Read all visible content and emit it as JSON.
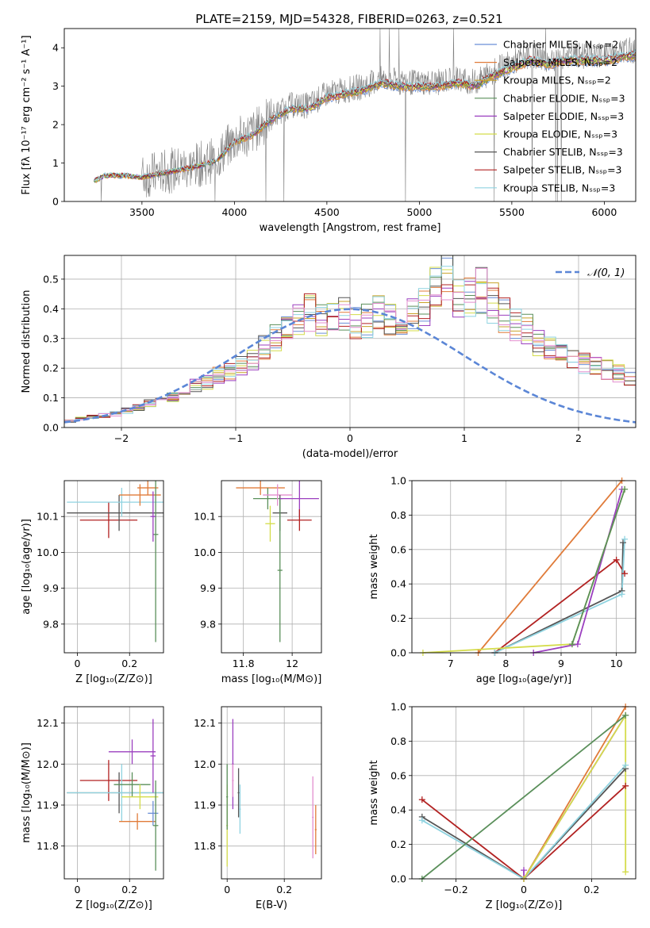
{
  "chart_data": [
    {
      "id": "spectrum",
      "type": "line",
      "title": "PLATE=2159, MJD=54328, FIBERID=0263, z=0.521",
      "xlabel": "wavelength [Angstrom, rest frame]",
      "ylabel": "Flux [fλ 10⁻¹⁷ erg cm⁻² s⁻¹ A⁻¹]",
      "xlim": [
        3080,
        6170
      ],
      "ylim": [
        0,
        4.5
      ],
      "xticks": [
        3500,
        4000,
        4500,
        5000,
        5500,
        6000
      ],
      "yticks": [
        0,
        1,
        2,
        3,
        4
      ],
      "legend_position": "upper-right",
      "data_color": "#808080",
      "data_range": [
        3240,
        6170
      ],
      "series": [
        {
          "name": "Chabrier MILES, Nₛₛₚ=2",
          "color": "#6b8fd6"
        },
        {
          "name": "Salpeter MILES, Nₛₛₚ=2",
          "color": "#e07b39"
        },
        {
          "name": "Kroupa MILES, Nₛₛₚ=2",
          "color": "#c9a227"
        },
        {
          "name": "Chabrier ELODIE, Nₛₛₚ=3",
          "color": "#5a8f5a"
        },
        {
          "name": "Salpeter ELODIE, Nₛₛₚ=3",
          "color": "#9b3fbf"
        },
        {
          "name": "Kroupa ELODIE, Nₛₛₚ=3",
          "color": "#d4dc4a"
        },
        {
          "name": "Chabrier STELIB, Nₛₛₚ=3",
          "color": "#555555"
        },
        {
          "name": "Salpeter STELIB, Nₛₛₚ=3",
          "color": "#b22222"
        },
        {
          "name": "Kroupa STELIB, Nₛₛₚ=3",
          "color": "#8fd3e0"
        }
      ],
      "continuum": {
        "x": [
          3240,
          3300,
          3400,
          3500,
          3600,
          3700,
          3800,
          3900,
          4000,
          4100,
          4200,
          4300,
          4400,
          4500,
          4600,
          4700,
          4800,
          4900,
          5000,
          5100,
          5200,
          5300,
          5400,
          5500,
          5600,
          5700,
          5800,
          5900,
          6000,
          6100,
          6170
        ],
        "y": [
          0.55,
          0.7,
          0.7,
          0.65,
          0.75,
          0.85,
          0.95,
          1.1,
          1.6,
          1.8,
          2.2,
          2.5,
          2.5,
          2.8,
          2.9,
          3.0,
          3.2,
          3.1,
          3.1,
          3.1,
          3.2,
          3.1,
          3.4,
          3.6,
          3.8,
          3.7,
          3.8,
          3.8,
          3.8,
          3.9,
          3.95
        ]
      }
    },
    {
      "id": "residuals",
      "type": "bar",
      "xlabel": "(data-model)/error",
      "ylabel": "Normed distribution",
      "xlim": [
        -2.5,
        2.5
      ],
      "ylim": [
        0,
        0.58
      ],
      "xticks": [
        -2,
        -1,
        0,
        1,
        2
      ],
      "yticks": [
        0.0,
        0.1,
        0.2,
        0.3,
        0.4,
        0.5
      ],
      "legend_label": "𝒩(0, 1)",
      "gaussian_color": "#5b86d6",
      "hist_colors": [
        "#6b8fd6",
        "#e07b39",
        "#c9a227",
        "#5a8f5a",
        "#9b3fbf",
        "#d4dc4a",
        "#555555",
        "#b22222",
        "#8fd3e0",
        "#e38fcf"
      ],
      "bin_width": 0.1,
      "hist_shape": [
        0.012,
        0.02,
        0.03,
        0.035,
        0.04,
        0.045,
        0.055,
        0.065,
        0.08,
        0.09,
        0.1,
        0.12,
        0.14,
        0.15,
        0.17,
        0.18,
        0.2,
        0.22,
        0.26,
        0.3,
        0.33,
        0.35,
        0.38,
        0.36,
        0.37,
        0.38,
        0.34,
        0.35,
        0.37,
        0.36,
        0.3,
        0.38,
        0.4,
        0.46,
        0.5,
        0.42,
        0.44,
        0.45,
        0.41,
        0.37,
        0.34,
        0.32,
        0.28,
        0.26,
        0.24,
        0.22,
        0.21,
        0.2,
        0.19,
        0.18,
        0.16,
        0.15,
        0.14,
        0.12,
        0.1,
        0.08,
        0.07,
        0.06,
        0.05,
        0.04
      ]
    },
    {
      "id": "age_vs_Z",
      "type": "scatter",
      "xlabel": "Z [log₁₀(Z/Z⊙)]",
      "ylabel": "age  [log₁₀(age/yr)]",
      "xlim": [
        -0.05,
        0.33
      ],
      "ylim": [
        9.72,
        10.2
      ],
      "xticks": [
        0.0,
        0.2
      ],
      "yticks": [
        9.8,
        9.9,
        10.0,
        10.1
      ],
      "points": [
        {
          "x": 0.12,
          "y": 10.09,
          "xerr": 0.11,
          "yerr": 0.05,
          "color": "#b22222"
        },
        {
          "x": 0.16,
          "y": 10.11,
          "xerr": 0.2,
          "yerr": 0.05,
          "color": "#555555"
        },
        {
          "x": 0.17,
          "y": 10.14,
          "xerr": 0.21,
          "yerr": 0.04,
          "color": "#8fd3e0"
        },
        {
          "x": 0.24,
          "y": 10.16,
          "xerr": 0.08,
          "yerr": 0.03,
          "color": "#e07b39"
        },
        {
          "x": 0.27,
          "y": 10.18,
          "xerr": 0.04,
          "yerr": 0.02,
          "color": "#e07b39"
        },
        {
          "x": 0.3,
          "y": 10.05,
          "xerr": 0.01,
          "yerr": 0.3,
          "color": "#5a8f5a"
        },
        {
          "x": 0.29,
          "y": 10.1,
          "xerr": 0.01,
          "yerr": 0.07,
          "color": "#9b3fbf"
        }
      ]
    },
    {
      "id": "age_vs_mass",
      "type": "scatter",
      "xlabel": "mass [log₁₀(M/M⊙)]",
      "ylabel": "",
      "xlim": [
        11.71,
        12.12
      ],
      "ylim": [
        9.72,
        10.2
      ],
      "xticks": [
        11.8,
        12.0
      ],
      "yticks": [
        9.8,
        9.9,
        10.0,
        10.1
      ],
      "points": [
        {
          "x": 11.87,
          "y": 10.18,
          "xerr": 0.1,
          "yerr": 0.02,
          "color": "#e07b39"
        },
        {
          "x": 11.9,
          "y": 10.15,
          "xerr": 0.06,
          "yerr": 0.03,
          "color": "#5a8f5a"
        },
        {
          "x": 11.94,
          "y": 10.16,
          "xerr": 0.06,
          "yerr": 0.03,
          "color": "#e38fcf"
        },
        {
          "x": 11.95,
          "y": 10.11,
          "xerr": 0.03,
          "yerr": 0.05,
          "color": "#555555"
        },
        {
          "x": 11.95,
          "y": 9.95,
          "xerr": 0.01,
          "yerr": 0.2,
          "color": "#5a8f5a"
        },
        {
          "x": 12.03,
          "y": 10.15,
          "xerr": 0.08,
          "yerr": 0.05,
          "color": "#9b3fbf"
        },
        {
          "x": 12.03,
          "y": 10.09,
          "xerr": 0.05,
          "yerr": 0.03,
          "color": "#b22222"
        },
        {
          "x": 11.91,
          "y": 10.08,
          "xerr": 0.02,
          "yerr": 0.05,
          "color": "#d4dc4a"
        }
      ]
    },
    {
      "id": "weight_vs_age",
      "type": "line",
      "xlabel": "age  [log₁₀(age/yr)]",
      "ylabel": "mass weight",
      "xlim": [
        6.3,
        10.35
      ],
      "ylim": [
        0,
        1.0
      ],
      "xticks": [
        7,
        8,
        9,
        10
      ],
      "yticks": [
        0.0,
        0.2,
        0.4,
        0.6,
        0.8,
        1.0
      ],
      "series": [
        {
          "color": "#e07b39",
          "x": [
            7.5,
            10.1
          ],
          "y": [
            0.0,
            1.0
          ]
        },
        {
          "color": "#b22222",
          "x": [
            7.8,
            10.0,
            10.15
          ],
          "y": [
            0.0,
            0.54,
            0.46
          ]
        },
        {
          "color": "#555555",
          "x": [
            7.8,
            10.1,
            10.12
          ],
          "y": [
            0.0,
            0.36,
            0.64
          ]
        },
        {
          "color": "#8fd3e0",
          "x": [
            7.8,
            10.1,
            10.15
          ],
          "y": [
            0.0,
            0.34,
            0.66
          ]
        },
        {
          "color": "#9b3fbf",
          "x": [
            8.5,
            9.3,
            10.1
          ],
          "y": [
            0.0,
            0.05,
            0.95
          ]
        },
        {
          "color": "#d4dc4a",
          "x": [
            6.5,
            9.2,
            10.15
          ],
          "y": [
            0.0,
            0.05,
            0.95
          ]
        },
        {
          "color": "#5a8f5a",
          "x": [
            9.2,
            10.15
          ],
          "y": [
            0.05,
            0.95
          ]
        }
      ]
    },
    {
      "id": "mass_vs_Z",
      "type": "scatter",
      "xlabel": "Z [log₁₀(Z/Z⊙)]",
      "ylabel": "mass [log₁₀(M/M⊙)]",
      "xlim": [
        -0.05,
        0.33
      ],
      "ylim": [
        11.72,
        12.14
      ],
      "xticks": [
        0.0,
        0.2
      ],
      "yticks": [
        11.8,
        11.9,
        12.0,
        12.1
      ],
      "points": [
        {
          "x": 0.12,
          "y": 11.96,
          "xerr": 0.11,
          "yerr": 0.05,
          "color": "#b22222"
        },
        {
          "x": 0.16,
          "y": 11.93,
          "xerr": 0.2,
          "yerr": 0.05,
          "color": "#555555"
        },
        {
          "x": 0.17,
          "y": 11.93,
          "xerr": 0.21,
          "yerr": 0.07,
          "color": "#8fd3e0"
        },
        {
          "x": 0.21,
          "y": 12.03,
          "xerr": 0.09,
          "yerr": 0.03,
          "color": "#9b3fbf"
        },
        {
          "x": 0.21,
          "y": 11.95,
          "xerr": 0.07,
          "yerr": 0.03,
          "color": "#5a8f5a"
        },
        {
          "x": 0.23,
          "y": 11.86,
          "xerr": 0.07,
          "yerr": 0.02,
          "color": "#e07b39"
        },
        {
          "x": 0.24,
          "y": 11.92,
          "xerr": 0.07,
          "yerr": 0.03,
          "color": "#d4dc4a"
        },
        {
          "x": 0.29,
          "y": 11.88,
          "xerr": 0.02,
          "yerr": 0.03,
          "color": "#6b8fd6"
        },
        {
          "x": 0.3,
          "y": 11.85,
          "xerr": 0.01,
          "yerr": 0.11,
          "color": "#5a8f5a"
        },
        {
          "x": 0.29,
          "y": 12.02,
          "xerr": 0.01,
          "yerr": 0.09,
          "color": "#9b3fbf"
        }
      ]
    },
    {
      "id": "mass_vs_ebv",
      "type": "scatter",
      "xlabel": "E(B-V)",
      "ylabel": "",
      "xlim": [
        -0.02,
        0.33
      ],
      "ylim": [
        11.72,
        12.14
      ],
      "xticks": [
        0.0,
        0.2
      ],
      "yticks": [
        11.8,
        11.9,
        12.0,
        12.1
      ],
      "points": [
        {
          "x": 0.0,
          "y": 11.85,
          "xerr": 0.003,
          "yerr": 0.1,
          "color": "#d4dc4a"
        },
        {
          "x": 0.0,
          "y": 11.92,
          "xerr": 0.003,
          "yerr": 0.08,
          "color": "#5a8f5a"
        },
        {
          "x": 0.02,
          "y": 12.0,
          "xerr": 0.003,
          "yerr": 0.11,
          "color": "#9b3fbf"
        },
        {
          "x": 0.02,
          "y": 11.96,
          "xerr": 0.003,
          "yerr": 0.04,
          "color": "#e38fcf"
        },
        {
          "x": 0.04,
          "y": 11.93,
          "xerr": 0.003,
          "yerr": 0.06,
          "color": "#555555"
        },
        {
          "x": 0.045,
          "y": 11.89,
          "xerr": 0.003,
          "yerr": 0.06,
          "color": "#8fd3e0"
        },
        {
          "x": 0.3,
          "y": 11.87,
          "xerr": 0.003,
          "yerr": 0.1,
          "color": "#e38fcf"
        },
        {
          "x": 0.31,
          "y": 11.84,
          "xerr": 0.003,
          "yerr": 0.06,
          "color": "#e07b39"
        }
      ]
    },
    {
      "id": "weight_vs_Z",
      "type": "line",
      "xlabel": "Z [log₁₀(Z/Z⊙)]",
      "ylabel": "mass weight",
      "xlim": [
        -0.33,
        0.33
      ],
      "ylim": [
        0,
        1.0
      ],
      "xticks": [
        -0.2,
        0.0,
        0.2
      ],
      "yticks": [
        0.0,
        0.2,
        0.4,
        0.6,
        0.8,
        1.0
      ],
      "series": [
        {
          "color": "#b22222",
          "x": [
            -0.3,
            0.0,
            0.3
          ],
          "y": [
            0.46,
            0.0,
            0.54
          ]
        },
        {
          "color": "#555555",
          "x": [
            -0.3,
            0.0,
            0.3
          ],
          "y": [
            0.36,
            0.0,
            0.64
          ]
        },
        {
          "color": "#8fd3e0",
          "x": [
            -0.3,
            0.0,
            0.3
          ],
          "y": [
            0.34,
            0.0,
            0.66
          ]
        },
        {
          "color": "#e07b39",
          "x": [
            0.0,
            0.3
          ],
          "y": [
            0.0,
            1.0
          ]
        },
        {
          "color": "#9b3fbf",
          "x": [
            0.0,
            0.0,
            0.3
          ],
          "y": [
            0.05,
            0.0,
            0.95
          ]
        },
        {
          "color": "#d4dc4a",
          "x": [
            0.0,
            0.3,
            0.3
          ],
          "y": [
            0.0,
            0.95,
            0.04
          ]
        },
        {
          "color": "#5a8f5a",
          "x": [
            -0.3,
            0.3
          ],
          "y": [
            0.0,
            0.95
          ]
        }
      ]
    }
  ]
}
